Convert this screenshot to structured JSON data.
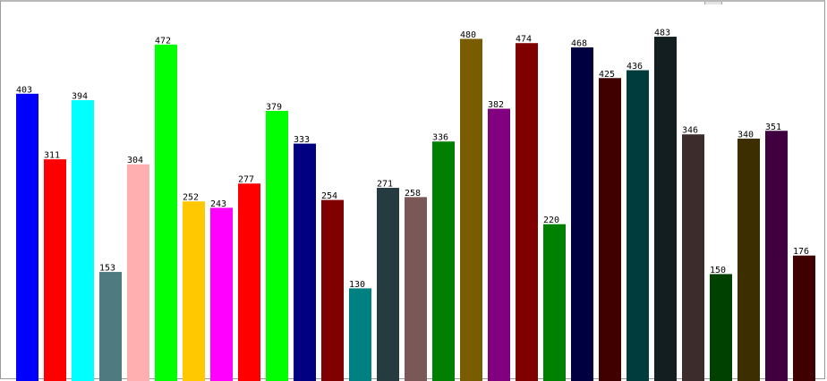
{
  "chart_data": {
    "type": "bar",
    "title": "",
    "xlabel": "",
    "ylabel": "",
    "ylim": [
      0,
      500
    ],
    "grid": false,
    "legend": "none",
    "values": [
      403,
      311,
      394,
      153,
      304,
      472,
      252,
      243,
      277,
      379,
      333,
      254,
      130,
      271,
      258,
      336,
      480,
      382,
      474,
      220,
      468,
      425,
      436,
      483,
      346,
      150,
      340,
      351,
      176
    ],
    "colors": [
      "#0000ff",
      "#ff0000",
      "#00ffff",
      "#4f7b80",
      "#ffafaf",
      "#00ff00",
      "#ffc800",
      "#ff00ff",
      "#ff0000",
      "#00ff00",
      "#000080",
      "#800000",
      "#008080",
      "#263b40",
      "#7a5858",
      "#008000",
      "#7a5c00",
      "#800080",
      "#800000",
      "#008000",
      "#000040",
      "#400000",
      "#003c3c",
      "#131e20",
      "#3d2c2c",
      "#004000",
      "#3d2e00",
      "#400040",
      "#400000"
    ]
  }
}
